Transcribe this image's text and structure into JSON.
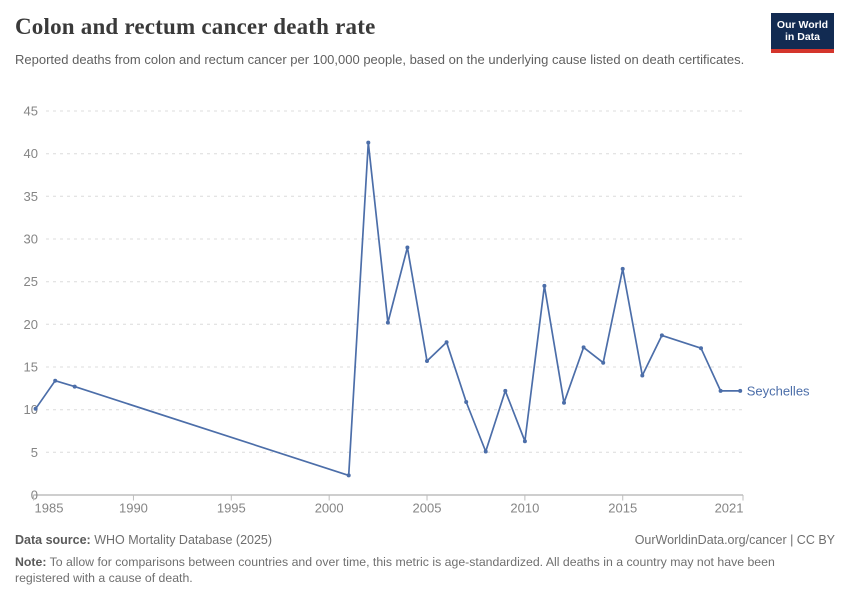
{
  "header": {
    "title": "Colon and rectum cancer death rate",
    "subtitle": "Reported deaths from colon and rectum cancer per 100,000 people, based on the underlying cause listed on death certificates.",
    "logo": {
      "line1": "Our World",
      "line2": "in Data",
      "bg_color": "#122b52",
      "bar_color": "#d4352c"
    }
  },
  "chart_data": {
    "type": "line",
    "title": "Colon and rectum cancer death rate",
    "xlabel": "",
    "ylabel": "",
    "xlim": [
      1985,
      2021
    ],
    "ylim": [
      0,
      45
    ],
    "x_ticks": [
      1985,
      1990,
      1995,
      2000,
      2005,
      2010,
      2015,
      2021
    ],
    "y_ticks": [
      0,
      5,
      10,
      15,
      20,
      25,
      30,
      35,
      40,
      45
    ],
    "grid": "horizontal-dashed",
    "legend_position": "end-of-line",
    "missing_years_connected_by_line": [
      [
        1987,
        2001
      ],
      [
        2017,
        2019
      ]
    ],
    "series": [
      {
        "name": "Seychelles",
        "color": "#4C6EA9",
        "points": [
          [
            1985,
            10.1
          ],
          [
            1986,
            13.4
          ],
          [
            1987,
            12.7
          ],
          [
            2001,
            2.3
          ],
          [
            2002,
            41.3
          ],
          [
            2003,
            20.2
          ],
          [
            2004,
            29.0
          ],
          [
            2005,
            15.7
          ],
          [
            2006,
            17.9
          ],
          [
            2007,
            10.9
          ],
          [
            2008,
            5.1
          ],
          [
            2009,
            12.2
          ],
          [
            2010,
            6.3
          ],
          [
            2011,
            24.5
          ],
          [
            2012,
            10.8
          ],
          [
            2013,
            17.3
          ],
          [
            2014,
            15.5
          ],
          [
            2015,
            26.5
          ],
          [
            2016,
            14.0
          ],
          [
            2017,
            18.7
          ],
          [
            2019,
            17.2
          ],
          [
            2020,
            12.2
          ],
          [
            2021,
            12.2
          ]
        ]
      }
    ],
    "axis_colors": {
      "axis_line": "#9c9c9c",
      "tick_mark": "#bdbdbd",
      "gridline": "#dcdcdc",
      "tick_label": "#858585"
    }
  },
  "footer": {
    "datasource_label": "Data source:",
    "datasource_value": " WHO Mortality Database (2025)",
    "attribution": "OurWorldinData.org/cancer | CC BY",
    "note_label": "Note:",
    "note_value": " To allow for comparisons between countries and over time, this metric is age-standardized. All deaths in a country may not have been registered with a cause of death."
  }
}
